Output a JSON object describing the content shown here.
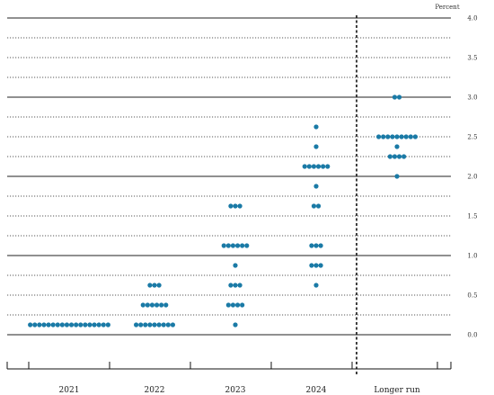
{
  "chart_data": {
    "type": "scatter",
    "unit_label": "Percent",
    "categories": [
      "2021",
      "2022",
      "2023",
      "2024",
      "Longer run"
    ],
    "ylim": [
      0,
      4.0
    ],
    "yticks": [
      "0.0",
      "0.5",
      "1.0",
      "1.5",
      "2.0",
      "2.5",
      "3.0",
      "3.5",
      "4.0"
    ],
    "grid": true,
    "dot_color": "#1a7aa6",
    "dots": {
      "2021": [
        {
          "y": 0.125,
          "count": 18
        }
      ],
      "2022": [
        {
          "y": 0.125,
          "count": 9
        },
        {
          "y": 0.375,
          "count": 6
        },
        {
          "y": 0.625,
          "count": 3
        }
      ],
      "2023": [
        {
          "y": 0.125,
          "count": 1
        },
        {
          "y": 0.375,
          "count": 4
        },
        {
          "y": 0.625,
          "count": 3
        },
        {
          "y": 0.875,
          "count": 1
        },
        {
          "y": 1.125,
          "count": 6
        },
        {
          "y": 1.625,
          "count": 3
        }
      ],
      "2024": [
        {
          "y": 0.625,
          "count": 1
        },
        {
          "y": 0.875,
          "count": 3
        },
        {
          "y": 1.125,
          "count": 3
        },
        {
          "y": 1.625,
          "count": 2
        },
        {
          "y": 1.875,
          "count": 1
        },
        {
          "y": 2.125,
          "count": 6
        },
        {
          "y": 2.375,
          "count": 1
        },
        {
          "y": 2.625,
          "count": 1
        }
      ],
      "Longer run": [
        {
          "y": 2.0,
          "count": 1
        },
        {
          "y": 2.25,
          "count": 4
        },
        {
          "y": 2.375,
          "count": 1
        },
        {
          "y": 2.5,
          "count": 9
        },
        {
          "y": 3.0,
          "count": 2
        }
      ]
    }
  }
}
